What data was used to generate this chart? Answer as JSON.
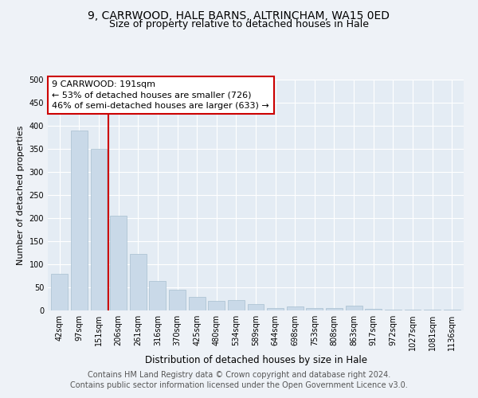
{
  "title1": "9, CARRWOOD, HALE BARNS, ALTRINCHAM, WA15 0ED",
  "title2": "Size of property relative to detached houses in Hale",
  "xlabel": "Distribution of detached houses by size in Hale",
  "ylabel": "Number of detached properties",
  "categories": [
    "42sqm",
    "97sqm",
    "151sqm",
    "206sqm",
    "261sqm",
    "316sqm",
    "370sqm",
    "425sqm",
    "480sqm",
    "534sqm",
    "589sqm",
    "644sqm",
    "698sqm",
    "753sqm",
    "808sqm",
    "863sqm",
    "917sqm",
    "972sqm",
    "1027sqm",
    "1081sqm",
    "1136sqm"
  ],
  "values": [
    80,
    390,
    350,
    205,
    123,
    63,
    45,
    30,
    20,
    23,
    13,
    6,
    8,
    6,
    5,
    10,
    4,
    2,
    2,
    2,
    2
  ],
  "bar_color": "#c9d9e8",
  "bar_edge_color": "#a8bfd0",
  "vline_color": "#cc0000",
  "annotation_text": "9 CARRWOOD: 191sqm\n← 53% of detached houses are smaller (726)\n46% of semi-detached houses are larger (633) →",
  "annotation_box_color": "#ffffff",
  "annotation_box_edge": "#cc0000",
  "ylim": [
    0,
    500
  ],
  "yticks": [
    0,
    50,
    100,
    150,
    200,
    250,
    300,
    350,
    400,
    450,
    500
  ],
  "footer1": "Contains HM Land Registry data © Crown copyright and database right 2024.",
  "footer2": "Contains public sector information licensed under the Open Government Licence v3.0.",
  "bg_color": "#eef2f7",
  "plot_bg_color": "#e4ecf4",
  "grid_color": "#ffffff",
  "title1_fontsize": 10,
  "title2_fontsize": 9,
  "xlabel_fontsize": 8.5,
  "ylabel_fontsize": 8,
  "tick_fontsize": 7,
  "annotation_fontsize": 8,
  "footer_fontsize": 7
}
